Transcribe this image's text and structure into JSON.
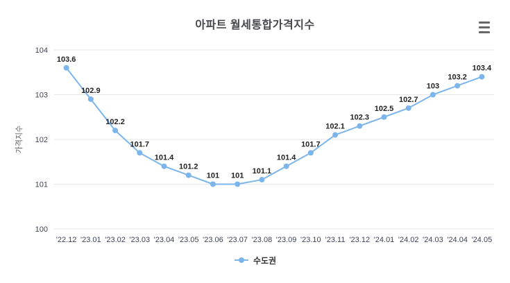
{
  "title": "아파트 월세통합가격지수",
  "menu": {
    "icon": "hamburger-menu-icon"
  },
  "legend": {
    "label": "수도권"
  },
  "colors": {
    "series_line": "#7cb5ec",
    "marker_fill": "#7cb5ec",
    "grid_line": "#e6e6e6",
    "data_label": "#222222",
    "tick_label": "#3d4254",
    "axis_title": "#666666",
    "title_text": "#47494f",
    "menu_icon": "#666666",
    "background": "#ffffff"
  },
  "chart_data": {
    "type": "line",
    "title": "아파트 월세통합가격지수",
    "categories": [
      "'22.12",
      "'23.01",
      "'23.02",
      "'23.03",
      "'23.04",
      "'23.05",
      "'23.06",
      "'23.07",
      "'23.08",
      "'23.09",
      "'23.10",
      "'23.11",
      "'23.12",
      "'24.01",
      "'24.02",
      "'24.03",
      "'24.04",
      "'24.05"
    ],
    "series": [
      {
        "name": "수도권",
        "values": [
          103.6,
          102.9,
          102.2,
          101.7,
          101.4,
          101.2,
          101,
          101,
          101.1,
          101.4,
          101.7,
          102.1,
          102.3,
          102.5,
          102.7,
          103,
          103.2,
          103.4
        ]
      }
    ],
    "xlabel": "",
    "ylabel": "가격지수",
    "ylim": [
      100,
      104
    ],
    "yticks": [
      100,
      101,
      102,
      103,
      104
    ],
    "grid": true,
    "data_labels_visible": true,
    "legend_position": "bottom"
  }
}
